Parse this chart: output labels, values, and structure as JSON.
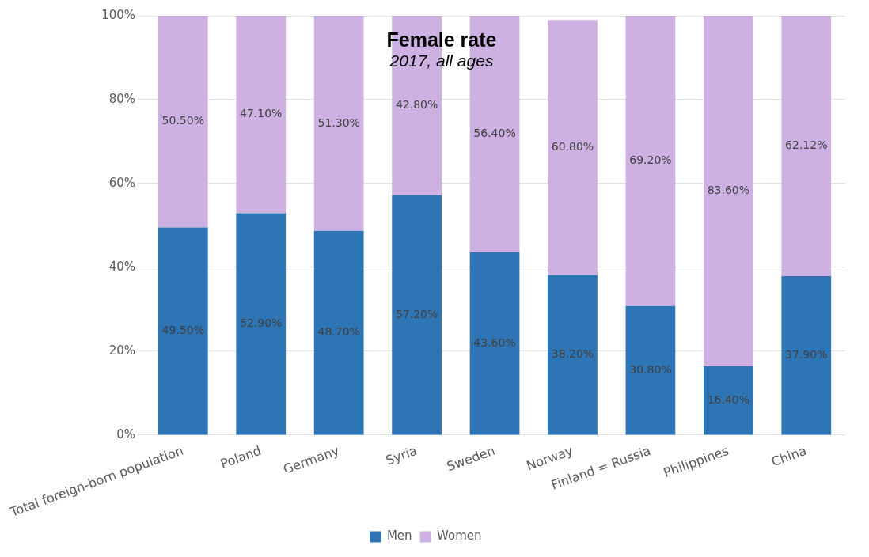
{
  "chart_data": {
    "type": "bar",
    "title": "Female rate",
    "subtitle": "2017, all ages",
    "stacked": true,
    "grid": "y",
    "legend": "bottom",
    "categories": [
      "Total foreign-born population",
      "Poland",
      "Germany",
      "Syria",
      "Sweden",
      "Norway",
      "Finland = Russia",
      "Philippines",
      "China"
    ],
    "ylim": [
      0,
      100
    ],
    "yticks": [
      {
        "value": 0,
        "label": "0%"
      },
      {
        "value": 20,
        "label": "20%"
      },
      {
        "value": 40,
        "label": "40%"
      },
      {
        "value": 60,
        "label": "60%"
      },
      {
        "value": 80,
        "label": "80%"
      },
      {
        "value": 100,
        "label": "100%"
      }
    ],
    "series": [
      {
        "name": "Men",
        "color": "#2e75b6",
        "values": [
          49.5,
          52.9,
          48.7,
          57.2,
          43.6,
          38.2,
          30.8,
          16.4,
          37.9
        ],
        "value_labels": [
          "49.50%",
          "52.90%",
          "48.70%",
          "57.20%",
          "43.60%",
          "38.20%",
          "30.80%",
          "16.40%",
          "37.90%"
        ]
      },
      {
        "name": "Women",
        "color": "#cdb1e3",
        "values": [
          50.5,
          47.1,
          51.3,
          42.8,
          56.4,
          60.8,
          69.2,
          83.6,
          62.12
        ],
        "value_labels": [
          "50.50%",
          "47.10%",
          "51.30%",
          "42.80%",
          "56.40%",
          "60.80%",
          "69.20%",
          "83.60%",
          "62.12%"
        ]
      }
    ]
  }
}
